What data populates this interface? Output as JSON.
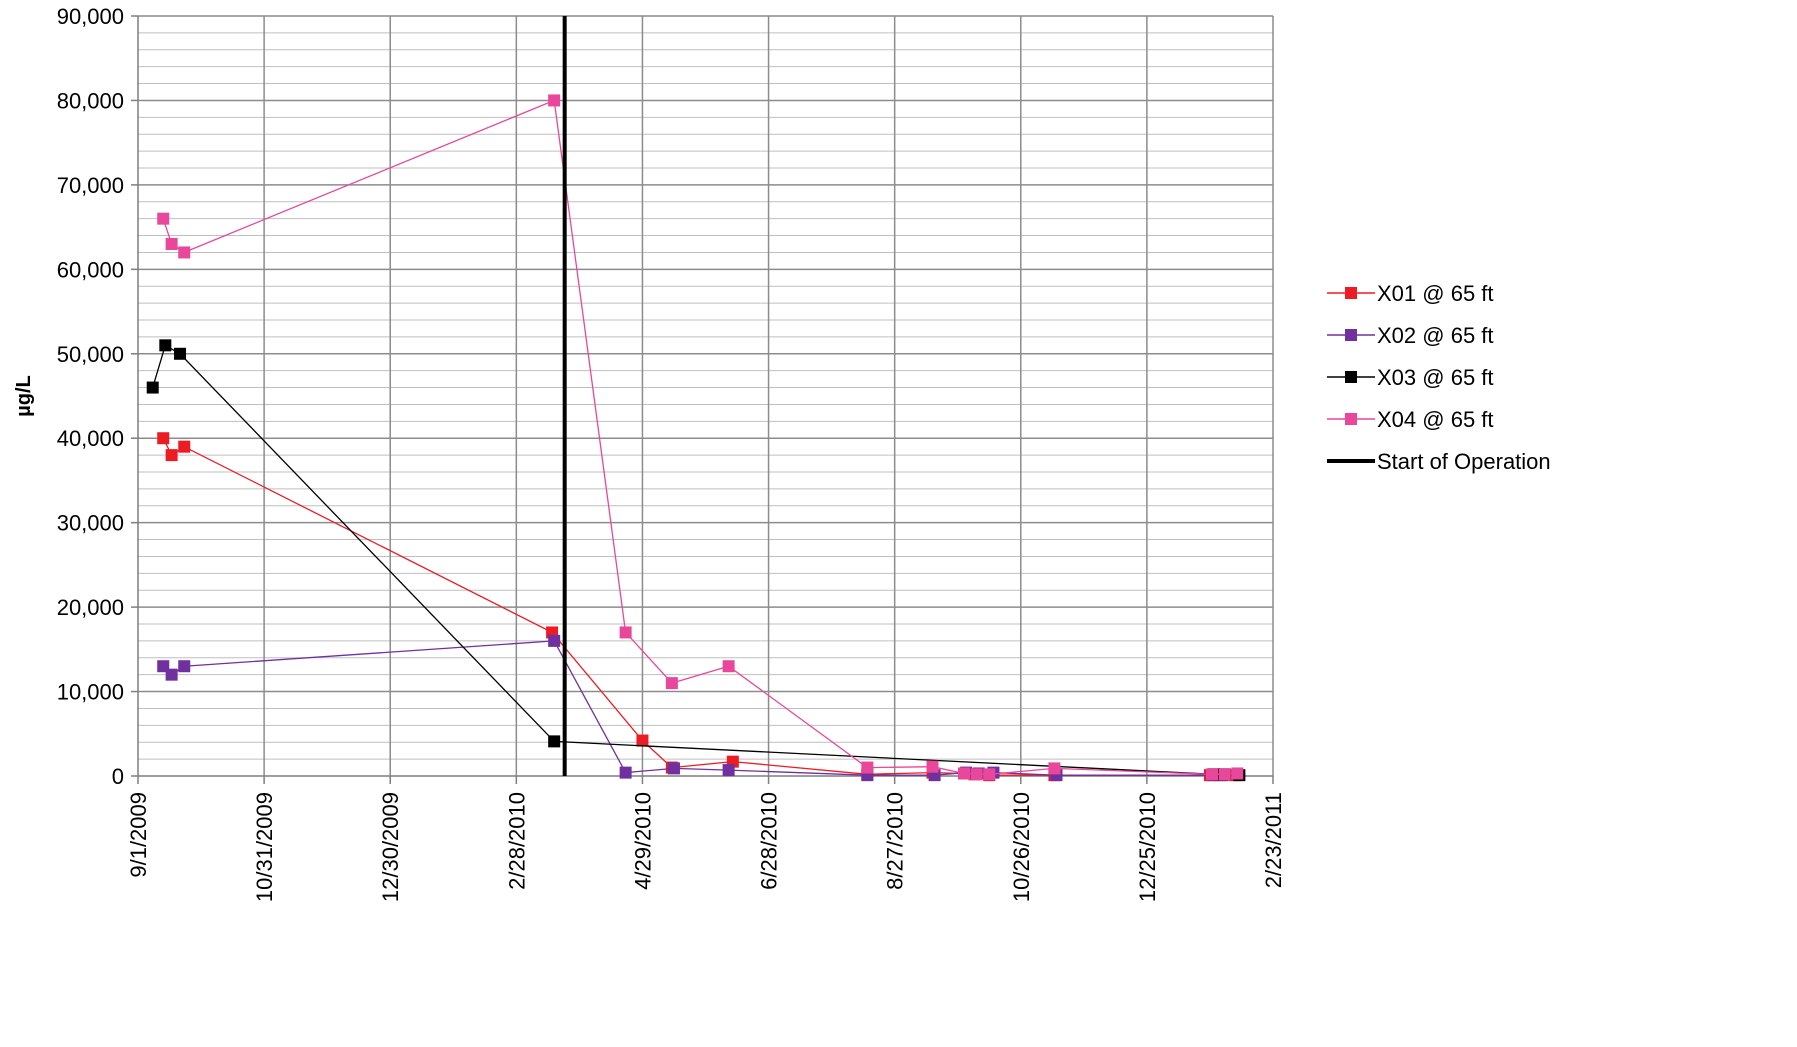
{
  "chart_data": {
    "type": "scatter",
    "title": "",
    "xlabel": "",
    "ylabel": "µg/L",
    "ylim": [
      0,
      90000
    ],
    "xlim": [
      "9/1/2009",
      "2/23/2011"
    ],
    "grid": true,
    "legend_position": "right",
    "x_tick_labels": [
      "9/1/2009",
      "10/31/2009",
      "12/30/2009",
      "2/28/2010",
      "4/29/2010",
      "6/28/2010",
      "8/27/2010",
      "10/26/2010",
      "12/25/2010",
      "2/23/2011"
    ],
    "y_tick_labels": [
      "0",
      "10,000",
      "20,000",
      "30,000",
      "40,000",
      "50,000",
      "60,000",
      "70,000",
      "80,000",
      "90,000"
    ],
    "y_ticks": [
      0,
      10000,
      20000,
      30000,
      40000,
      50000,
      60000,
      70000,
      80000,
      90000
    ],
    "series": [
      {
        "name": "X01 @ 65 ft",
        "color": "#ed1c24",
        "x": [
          "2009-09-13",
          "2009-09-17",
          "2009-09-23",
          "2010-03-17",
          "2010-04-29",
          "2010-05-13",
          "2010-06-11",
          "2010-08-14",
          "2010-09-14",
          "2010-09-29",
          "2010-10-04",
          "2010-10-11",
          "2010-11-11",
          "2011-01-24",
          "2011-01-29",
          "2011-02-05"
        ],
        "y": [
          40000,
          38000,
          39000,
          17000,
          4200,
          1000,
          1700,
          200,
          400,
          300,
          200,
          100,
          100,
          100,
          100,
          100
        ]
      },
      {
        "name": "X02 @ 65 ft",
        "color": "#7030a0",
        "x": [
          "2009-09-13",
          "2009-09-17",
          "2009-09-23",
          "2010-03-18",
          "2010-04-21",
          "2010-05-14",
          "2010-06-09",
          "2010-08-14",
          "2010-09-15",
          "2010-09-30",
          "2010-10-06",
          "2010-10-13",
          "2010-11-12",
          "2011-01-25",
          "2011-01-30"
        ],
        "y": [
          13000,
          12000,
          13000,
          16000,
          400,
          900,
          700,
          100,
          100,
          400,
          300,
          400,
          100,
          100,
          100
        ]
      },
      {
        "name": "X03 @ 65 ft",
        "color": "#000000",
        "x": [
          "2009-09-08",
          "2009-09-14",
          "2009-09-21",
          "2010-03-18",
          "2011-01-26",
          "2011-01-31",
          "2011-02-07"
        ],
        "y": [
          46000,
          51000,
          50000,
          4100,
          200,
          200,
          100
        ]
      },
      {
        "name": "X04 @ 65 ft",
        "color": "#e8479b",
        "x": [
          "2009-09-13",
          "2009-09-17",
          "2009-09-23",
          "2010-03-18",
          "2010-04-21",
          "2010-05-13",
          "2010-06-09",
          "2010-08-14",
          "2010-09-14",
          "2010-09-29",
          "2010-10-05",
          "2010-10-11",
          "2010-11-11",
          "2011-01-25",
          "2011-01-31",
          "2011-02-06"
        ],
        "y": [
          66000,
          63000,
          62000,
          80000,
          17000,
          11000,
          13000,
          1000,
          1100,
          300,
          200,
          200,
          900,
          200,
          200,
          300
        ]
      }
    ],
    "vertical_line": {
      "name": "Start of Operation",
      "x": "2010-03-23",
      "color": "#000000"
    }
  }
}
